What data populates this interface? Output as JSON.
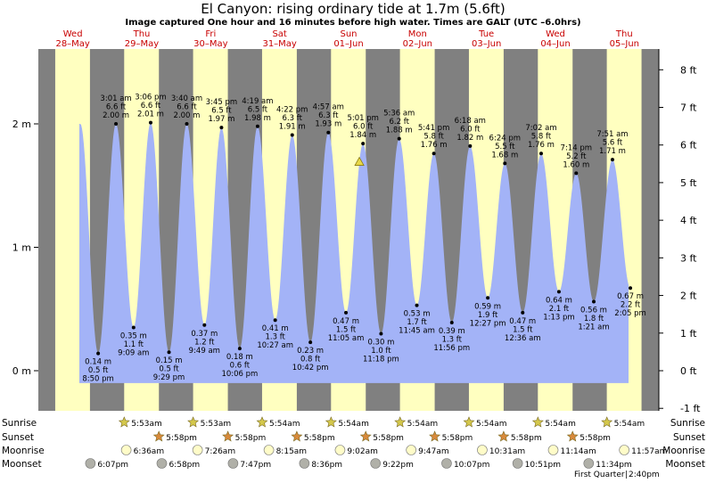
{
  "title": "El Canyon: rising  ordinary tide at 1.7m (5.6ft)",
  "subtitle": "Image captured One hour and 16 minutes before high water. Times are GALT (UTC –6.0hrs)",
  "colors": {
    "night": "#808080",
    "day": "#ffffc0",
    "tide": "#a3b3f7",
    "day_label": "#c80000",
    "sun": "#d4c84c",
    "sunset_star": "#d88a3c",
    "moonrise": "#fffcc8",
    "moonset": "#b0b0a8"
  },
  "days": [
    {
      "weekday": "Wed",
      "date": "28–May"
    },
    {
      "weekday": "Thu",
      "date": "29–May"
    },
    {
      "weekday": "Fri",
      "date": "30–May"
    },
    {
      "weekday": "Sat",
      "date": "31–May"
    },
    {
      "weekday": "Sun",
      "date": "01–Jun"
    },
    {
      "weekday": "Mon",
      "date": "02–Jun"
    },
    {
      "weekday": "Tue",
      "date": "03–Jun"
    },
    {
      "weekday": "Wed",
      "date": "04–Jun"
    },
    {
      "weekday": "Thu",
      "date": "05–Jun"
    }
  ],
  "y_axis_left": [
    {
      "label": "0 m",
      "m": 0
    },
    {
      "label": "1 m",
      "m": 1
    },
    {
      "label": "2 m",
      "m": 2
    }
  ],
  "y_axis_right": [
    {
      "label": "-1 ft",
      "ft": -1
    },
    {
      "label": "0 ft",
      "ft": 0
    },
    {
      "label": "1 ft",
      "ft": 1
    },
    {
      "label": "2 ft",
      "ft": 2
    },
    {
      "label": "3 ft",
      "ft": 3
    },
    {
      "label": "4 ft",
      "ft": 4
    },
    {
      "label": "5 ft",
      "ft": 5
    },
    {
      "label": "6 ft",
      "ft": 6
    },
    {
      "label": "7 ft",
      "ft": 7
    },
    {
      "label": "8 ft",
      "ft": 8
    }
  ],
  "chart_data": {
    "type": "area",
    "title": "El Canyon: rising  ordinary tide at 1.7m (5.6ft)",
    "subtitle": "Image captured One hour and 16 minutes before high water. Times are GALT (UTC –6.0hrs)",
    "y_unit_left": "m",
    "y_unit_right": "ft",
    "ylim_m": [
      -0.3,
      2.75
    ],
    "x_start": "Wed 28 May 00:00",
    "x_end": "Fri 06 Jun 00:00",
    "current_height_m": 1.7,
    "tides": [
      {
        "type": "low",
        "day": 0,
        "time": "8:50 pm",
        "m": "0.14 m",
        "ft": "0.5 ft",
        "t_h": 20.83,
        "h": 0.14
      },
      {
        "type": "high",
        "day": 1,
        "time": "3:01 am",
        "m": "2.00 m",
        "ft": "6.6 ft",
        "t_h": 3.02,
        "h": 2.0
      },
      {
        "type": "low",
        "day": 1,
        "time": "9:09 am",
        "m": "0.35 m",
        "ft": "1.1 ft",
        "t_h": 9.15,
        "h": 0.35
      },
      {
        "type": "high",
        "day": 1,
        "time": "3:06 pm",
        "m": "2.01 m",
        "ft": "6.6 ft",
        "t_h": 15.1,
        "h": 2.01
      },
      {
        "type": "low",
        "day": 1,
        "time": "9:29 pm",
        "m": "0.15 m",
        "ft": "0.5 ft",
        "t_h": 21.48,
        "h": 0.15
      },
      {
        "type": "high",
        "day": 2,
        "time": "3:40 am",
        "m": "2.00 m",
        "ft": "6.6 ft",
        "t_h": 3.67,
        "h": 2.0
      },
      {
        "type": "low",
        "day": 2,
        "time": "9:49 am",
        "m": "0.37 m",
        "ft": "1.2 ft",
        "t_h": 9.82,
        "h": 0.37
      },
      {
        "type": "high",
        "day": 2,
        "time": "3:45 pm",
        "m": "1.97 m",
        "ft": "6.5 ft",
        "t_h": 15.75,
        "h": 1.97
      },
      {
        "type": "low",
        "day": 2,
        "time": "10:06 pm",
        "m": "0.18 m",
        "ft": "0.6 ft",
        "t_h": 22.1,
        "h": 0.18
      },
      {
        "type": "high",
        "day": 3,
        "time": "4:19 am",
        "m": "1.98 m",
        "ft": "6.5 ft",
        "t_h": 4.32,
        "h": 1.98
      },
      {
        "type": "low",
        "day": 3,
        "time": "10:27 am",
        "m": "0.41 m",
        "ft": "1.3 ft",
        "t_h": 10.45,
        "h": 0.41
      },
      {
        "type": "high",
        "day": 3,
        "time": "4:22 pm",
        "m": "1.91 m",
        "ft": "6.3 ft",
        "t_h": 16.37,
        "h": 1.91
      },
      {
        "type": "low",
        "day": 3,
        "time": "10:42 pm",
        "m": "0.23 m",
        "ft": "0.8 ft",
        "t_h": 22.7,
        "h": 0.23
      },
      {
        "type": "high",
        "day": 4,
        "time": "4:57 am",
        "m": "1.93 m",
        "ft": "6.3 ft",
        "t_h": 4.95,
        "h": 1.93
      },
      {
        "type": "low",
        "day": 4,
        "time": "11:05 am",
        "m": "0.47 m",
        "ft": "1.5 ft",
        "t_h": 11.08,
        "h": 0.47
      },
      {
        "type": "high",
        "day": 4,
        "time": "5:01 pm",
        "m": "1.84 m",
        "ft": "6.0 ft",
        "t_h": 17.02,
        "h": 1.84
      },
      {
        "type": "low",
        "day": 4,
        "time": "11:18 pm",
        "m": "0.30 m",
        "ft": "1.0 ft",
        "t_h": 23.3,
        "h": 0.3
      },
      {
        "type": "high",
        "day": 5,
        "time": "5:36 am",
        "m": "1.88 m",
        "ft": "6.2 ft",
        "t_h": 5.6,
        "h": 1.88
      },
      {
        "type": "low",
        "day": 5,
        "time": "11:45 am",
        "m": "0.53 m",
        "ft": "1.7 ft",
        "t_h": 11.75,
        "h": 0.53
      },
      {
        "type": "high",
        "day": 5,
        "time": "5:41 pm",
        "m": "1.76 m",
        "ft": "5.8 ft",
        "t_h": 17.68,
        "h": 1.76
      },
      {
        "type": "low",
        "day": 5,
        "time": "11:56 pm",
        "m": "0.39 m",
        "ft": "1.3 ft",
        "t_h": 23.93,
        "h": 0.39
      },
      {
        "type": "high",
        "day": 6,
        "time": "6:18 am",
        "m": "1.82 m",
        "ft": "6.0 ft",
        "t_h": 6.3,
        "h": 1.82
      },
      {
        "type": "low",
        "day": 6,
        "time": "12:27 pm",
        "m": "0.59 m",
        "ft": "1.9 ft",
        "t_h": 12.45,
        "h": 0.59
      },
      {
        "type": "high",
        "day": 6,
        "time": "6:24 pm",
        "m": "1.68 m",
        "ft": "5.5 ft",
        "t_h": 18.4,
        "h": 1.68
      },
      {
        "type": "low",
        "day": 7,
        "time": "12:36 am",
        "m": "0.47 m",
        "ft": "1.5 ft",
        "t_h": 0.6,
        "h": 0.47
      },
      {
        "type": "high",
        "day": 7,
        "time": "7:02 am",
        "m": "1.76 m",
        "ft": "5.8 ft",
        "t_h": 7.03,
        "h": 1.76
      },
      {
        "type": "low",
        "day": 7,
        "time": "1:13 pm",
        "m": "0.64 m",
        "ft": "2.1 ft",
        "t_h": 13.22,
        "h": 0.64
      },
      {
        "type": "high",
        "day": 7,
        "time": "7:14 pm",
        "m": "1.60 m",
        "ft": "5.2 ft",
        "t_h": 19.23,
        "h": 1.6
      },
      {
        "type": "low",
        "day": 8,
        "time": "1:21 am",
        "m": "0.56 m",
        "ft": "1.8 ft",
        "t_h": 1.35,
        "h": 0.56
      },
      {
        "type": "high",
        "day": 8,
        "time": "7:51 am",
        "m": "1.71 m",
        "ft": "5.6 ft",
        "t_h": 7.85,
        "h": 1.71
      },
      {
        "type": "low",
        "day": 8,
        "time": "2:05 pm",
        "m": "0.67 m",
        "ft": "2.2 ft",
        "t_h": 14.08,
        "h": 0.67
      }
    ]
  },
  "bottom": {
    "labels": [
      "Sunrise",
      "Sunset",
      "Moonrise",
      "Moonset"
    ],
    "sunrise": [
      {
        "day": 1,
        "time": "5:53am",
        "t_h": 5.88
      },
      {
        "day": 2,
        "time": "5:53am",
        "t_h": 5.88
      },
      {
        "day": 3,
        "time": "5:54am",
        "t_h": 5.9
      },
      {
        "day": 4,
        "time": "5:54am",
        "t_h": 5.9
      },
      {
        "day": 5,
        "time": "5:54am",
        "t_h": 5.9
      },
      {
        "day": 6,
        "time": "5:54am",
        "t_h": 5.9
      },
      {
        "day": 7,
        "time": "5:54am",
        "t_h": 5.9
      },
      {
        "day": 8,
        "time": "5:54am",
        "t_h": 5.9
      }
    ],
    "sunset": [
      {
        "day": 1,
        "time": "5:58pm",
        "t_h": 17.97
      },
      {
        "day": 2,
        "time": "5:58pm",
        "t_h": 17.97
      },
      {
        "day": 3,
        "time": "5:58pm",
        "t_h": 17.97
      },
      {
        "day": 4,
        "time": "5:58pm",
        "t_h": 17.97
      },
      {
        "day": 5,
        "time": "5:58pm",
        "t_h": 17.97
      },
      {
        "day": 6,
        "time": "5:58pm",
        "t_h": 17.97
      },
      {
        "day": 7,
        "time": "5:58pm",
        "t_h": 17.97
      }
    ],
    "moonrise": [
      {
        "day": 1,
        "time": "6:36am",
        "t_h": 6.6
      },
      {
        "day": 2,
        "time": "7:26am",
        "t_h": 7.43
      },
      {
        "day": 3,
        "time": "8:15am",
        "t_h": 8.25
      },
      {
        "day": 4,
        "time": "9:02am",
        "t_h": 9.03
      },
      {
        "day": 5,
        "time": "9:47am",
        "t_h": 9.78
      },
      {
        "day": 6,
        "time": "10:31am",
        "t_h": 10.52
      },
      {
        "day": 7,
        "time": "11:14am",
        "t_h": 11.23
      },
      {
        "day": 8,
        "time": "11:57am",
        "t_h": 11.95
      }
    ],
    "moonset": [
      {
        "day": 0,
        "time": "6:07pm",
        "t_h": 18.12
      },
      {
        "day": 1,
        "time": "6:58pm",
        "t_h": 18.97
      },
      {
        "day": 2,
        "time": "7:47pm",
        "t_h": 19.78
      },
      {
        "day": 3,
        "time": "8:36pm",
        "t_h": 20.6
      },
      {
        "day": 4,
        "time": "9:22pm",
        "t_h": 21.37
      },
      {
        "day": 5,
        "time": "10:07pm",
        "t_h": 22.12
      },
      {
        "day": 6,
        "time": "10:51pm",
        "t_h": 22.85
      },
      {
        "day": 7,
        "time": "11:34pm",
        "t_h": 23.57
      }
    ],
    "moon_phase": "First Quarter",
    "moon_phase_time": "2:40pm"
  }
}
